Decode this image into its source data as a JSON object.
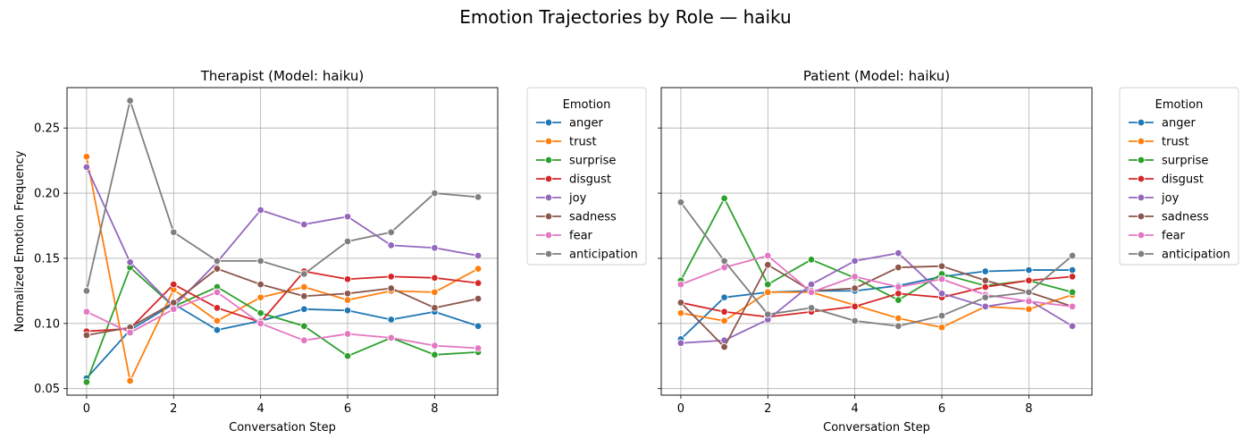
{
  "figure": {
    "title": "Emotion Trajectories by Role — haiku"
  },
  "chart_data": [
    {
      "type": "line",
      "title": "Therapist (Model: haiku)",
      "xlabel": "Conversation Step",
      "ylabel": "Normalized Emotion Frequency",
      "x": [
        0,
        1,
        2,
        3,
        4,
        5,
        6,
        7,
        8,
        9
      ],
      "xticks": [
        "0",
        "2",
        "4",
        "6",
        "8"
      ],
      "yticks": [
        "0.05",
        "0.10",
        "0.15",
        "0.20",
        "0.25"
      ],
      "xlim": [
        -0.45,
        9.45
      ],
      "ylim": [
        0.045,
        0.281
      ],
      "grid": true,
      "legend": {
        "title": "Emotion",
        "placement": "outside-right"
      },
      "series": [
        {
          "name": "anger",
          "color": "#1f77b4",
          "values": [
            0.058,
            0.095,
            0.115,
            0.095,
            0.102,
            0.111,
            0.11,
            0.103,
            0.109,
            0.098
          ]
        },
        {
          "name": "trust",
          "color": "#ff7f0e",
          "values": [
            0.228,
            0.056,
            0.126,
            0.102,
            0.12,
            0.128,
            0.118,
            0.125,
            0.124,
            0.142
          ]
        },
        {
          "name": "surprise",
          "color": "#2ca02c",
          "values": [
            0.055,
            0.143,
            0.113,
            0.128,
            0.108,
            0.098,
            0.075,
            0.089,
            0.076,
            0.078
          ]
        },
        {
          "name": "disgust",
          "color": "#d62728",
          "values": [
            0.094,
            0.096,
            0.13,
            0.112,
            0.101,
            0.14,
            0.134,
            0.136,
            0.135,
            0.131
          ]
        },
        {
          "name": "joy",
          "color": "#9467bd",
          "values": [
            0.22,
            0.147,
            0.113,
            0.147,
            0.187,
            0.176,
            0.182,
            0.16,
            0.158,
            0.152
          ]
        },
        {
          "name": "sadness",
          "color": "#8c564b",
          "values": [
            0.091,
            0.097,
            0.116,
            0.142,
            0.13,
            0.121,
            0.123,
            0.127,
            0.112,
            0.119
          ]
        },
        {
          "name": "fear",
          "color": "#e377c2",
          "values": [
            0.109,
            0.093,
            0.111,
            0.124,
            0.1,
            0.087,
            0.092,
            0.089,
            0.083,
            0.081
          ]
        },
        {
          "name": "anticipation",
          "color": "#7f7f7f",
          "values": [
            0.125,
            0.271,
            0.17,
            0.148,
            0.148,
            0.138,
            0.163,
            0.17,
            0.2,
            0.197
          ]
        }
      ]
    },
    {
      "type": "line",
      "title": "Patient (Model: haiku)",
      "xlabel": "Conversation Step",
      "ylabel": "",
      "x": [
        0,
        1,
        2,
        3,
        4,
        5,
        6,
        7,
        8,
        9
      ],
      "xticks": [
        "0",
        "2",
        "4",
        "6",
        "8"
      ],
      "yticks": [],
      "xlim": [
        -0.45,
        9.45
      ],
      "ylim": [
        0.045,
        0.281
      ],
      "grid": true,
      "legend": {
        "title": "Emotion",
        "placement": "outside-right"
      },
      "series": [
        {
          "name": "anger",
          "color": "#1f77b4",
          "values": [
            0.088,
            0.12,
            0.124,
            0.125,
            0.125,
            0.129,
            0.136,
            0.14,
            0.141,
            0.141
          ]
        },
        {
          "name": "trust",
          "color": "#ff7f0e",
          "values": [
            0.108,
            0.102,
            0.124,
            0.124,
            0.114,
            0.104,
            0.097,
            0.113,
            0.111,
            0.122
          ]
        },
        {
          "name": "surprise",
          "color": "#2ca02c",
          "values": [
            0.133,
            0.196,
            0.13,
            0.149,
            0.135,
            0.118,
            0.138,
            0.129,
            0.133,
            0.124
          ]
        },
        {
          "name": "disgust",
          "color": "#d62728",
          "values": [
            0.116,
            0.109,
            0.105,
            0.109,
            0.113,
            0.123,
            0.12,
            0.128,
            0.133,
            0.136
          ]
        },
        {
          "name": "joy",
          "color": "#9467bd",
          "values": [
            0.085,
            0.087,
            0.103,
            0.13,
            0.148,
            0.154,
            0.123,
            0.113,
            0.118,
            0.098
          ]
        },
        {
          "name": "sadness",
          "color": "#8c564b",
          "values": [
            0.116,
            0.082,
            0.145,
            0.125,
            0.127,
            0.143,
            0.144,
            0.133,
            0.124,
            0.113
          ]
        },
        {
          "name": "fear",
          "color": "#e377c2",
          "values": [
            0.13,
            0.143,
            0.152,
            0.124,
            0.136,
            0.128,
            0.134,
            0.122,
            0.117,
            0.113
          ]
        },
        {
          "name": "anticipation",
          "color": "#7f7f7f",
          "values": [
            0.193,
            0.148,
            0.107,
            0.112,
            0.102,
            0.098,
            0.106,
            0.12,
            0.124,
            0.152
          ]
        }
      ]
    }
  ]
}
